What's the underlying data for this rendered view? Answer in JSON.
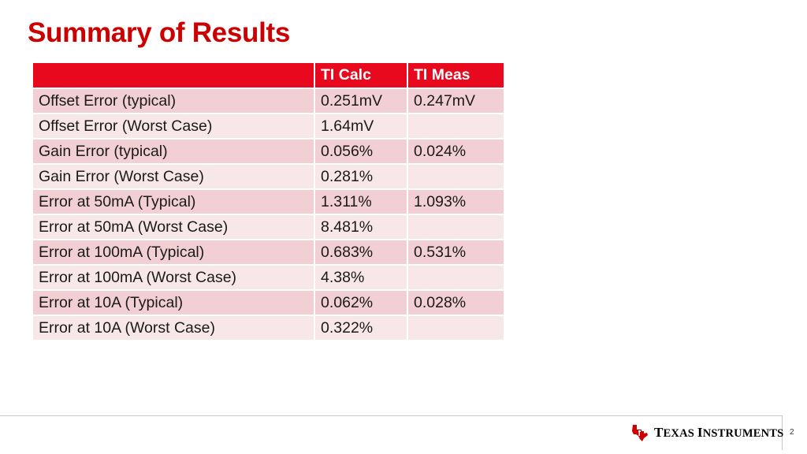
{
  "slide": {
    "title": "Summary of Results",
    "page_number": "2"
  },
  "table": {
    "headers": [
      "",
      "TI Calc",
      "TI Meas"
    ],
    "rows": [
      [
        "Offset Error (typical)",
        "0.251mV",
        "0.247mV"
      ],
      [
        "Offset Error (Worst Case)",
        "1.64mV",
        ""
      ],
      [
        "Gain Error (typical)",
        "0.056%",
        "0.024%"
      ],
      [
        "Gain Error (Worst Case)",
        "0.281%",
        ""
      ],
      [
        "Error at 50mA (Typical)",
        "1.311%",
        "1.093%"
      ],
      [
        "Error at 50mA (Worst Case)",
        "8.481%",
        ""
      ],
      [
        "Error at 100mA (Typical)",
        "0.683%",
        "0.531%"
      ],
      [
        "Error at 100mA (Worst Case)",
        "4.38%",
        ""
      ],
      [
        "Error at 10A (Typical)",
        "0.062%",
        "0.028%"
      ],
      [
        "Error at 10A (Worst Case)",
        "0.322%",
        ""
      ]
    ]
  },
  "footer": {
    "logo_text_first_cap": "T",
    "logo_text_first_rest": "EXAS",
    "logo_text_second_cap": "I",
    "logo_text_second_rest": "NSTRUMENTS"
  },
  "colors": {
    "title": "#cc0000",
    "header_fill": "#e8091e",
    "row_dark": "#f2cfd2",
    "row_light": "#f8e7e9",
    "logo_red": "#cc0000"
  },
  "icons": {
    "logo": "texas-state-icon"
  }
}
